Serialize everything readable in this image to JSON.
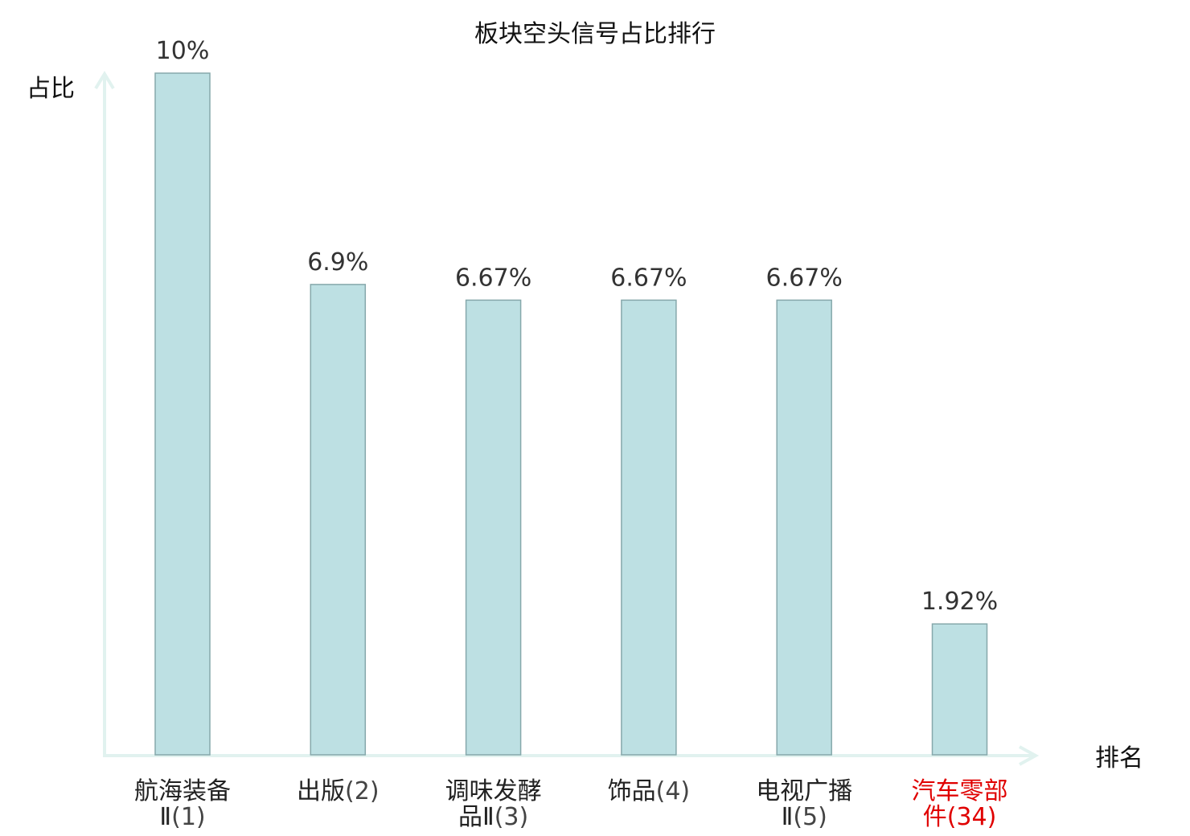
{
  "chart_data": {
    "type": "bar",
    "title": "板块空头信号占比排行",
    "ylabel": "占比",
    "xlabel": "排名",
    "ylim": [
      0,
      10
    ],
    "categories": [
      {
        "name_lines": [
          "航海装备",
          "Ⅱ"
        ],
        "rank": "(1)",
        "highlight": false
      },
      {
        "name_lines": [
          "出版"
        ],
        "rank": "(2)",
        "highlight": false
      },
      {
        "name_lines": [
          "调味发酵",
          "品Ⅱ"
        ],
        "rank": "(3)",
        "highlight": false
      },
      {
        "name_lines": [
          "饰品"
        ],
        "rank": "(4)",
        "highlight": false
      },
      {
        "name_lines": [
          "电视广播",
          "Ⅱ"
        ],
        "rank": "(5)",
        "highlight": false
      },
      {
        "name_lines": [
          "汽车零部",
          "件"
        ],
        "rank": "(34)",
        "highlight": true
      }
    ],
    "values": [
      10,
      6.9,
      6.67,
      6.67,
      6.67,
      1.92
    ],
    "value_labels": [
      "10%",
      "6.9%",
      "6.67%",
      "6.67%",
      "6.67%",
      "1.92%"
    ],
    "grid": false,
    "colors": {
      "bar_fill": "#bde0e3",
      "bar_stroke": "#86a8ab",
      "axis": "#e1f2ef",
      "highlight_text": "#e00000"
    }
  }
}
